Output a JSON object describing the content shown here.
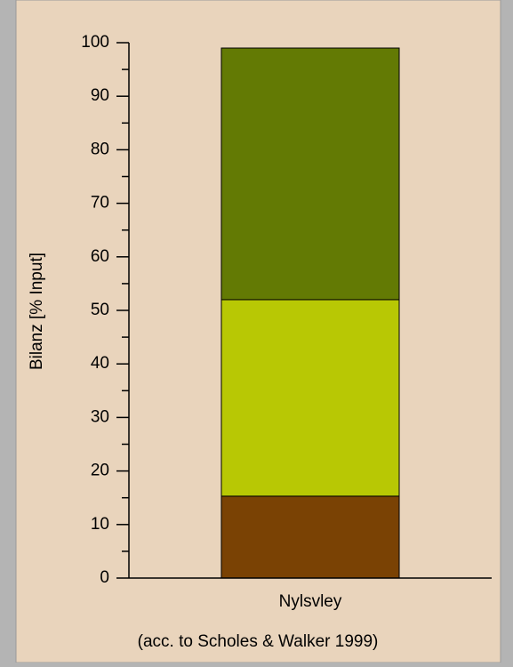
{
  "chart_data": {
    "type": "stacked-bar",
    "categories": [
      "Nylsvley"
    ],
    "series": [
      {
        "color": "#7a4204",
        "values": [
          15.3
        ]
      },
      {
        "color": "#b8c804",
        "values": [
          36.7
        ]
      },
      {
        "color": "#637a04",
        "values": [
          47
        ]
      }
    ],
    "ylabel": "Bilanz [% Input]",
    "note": "(acc. to Scholes & Walker 1999)",
    "ylim": [
      0,
      100
    ],
    "yticks": [
      0,
      10,
      20,
      30,
      40,
      50,
      60,
      70,
      80,
      90,
      100
    ]
  }
}
